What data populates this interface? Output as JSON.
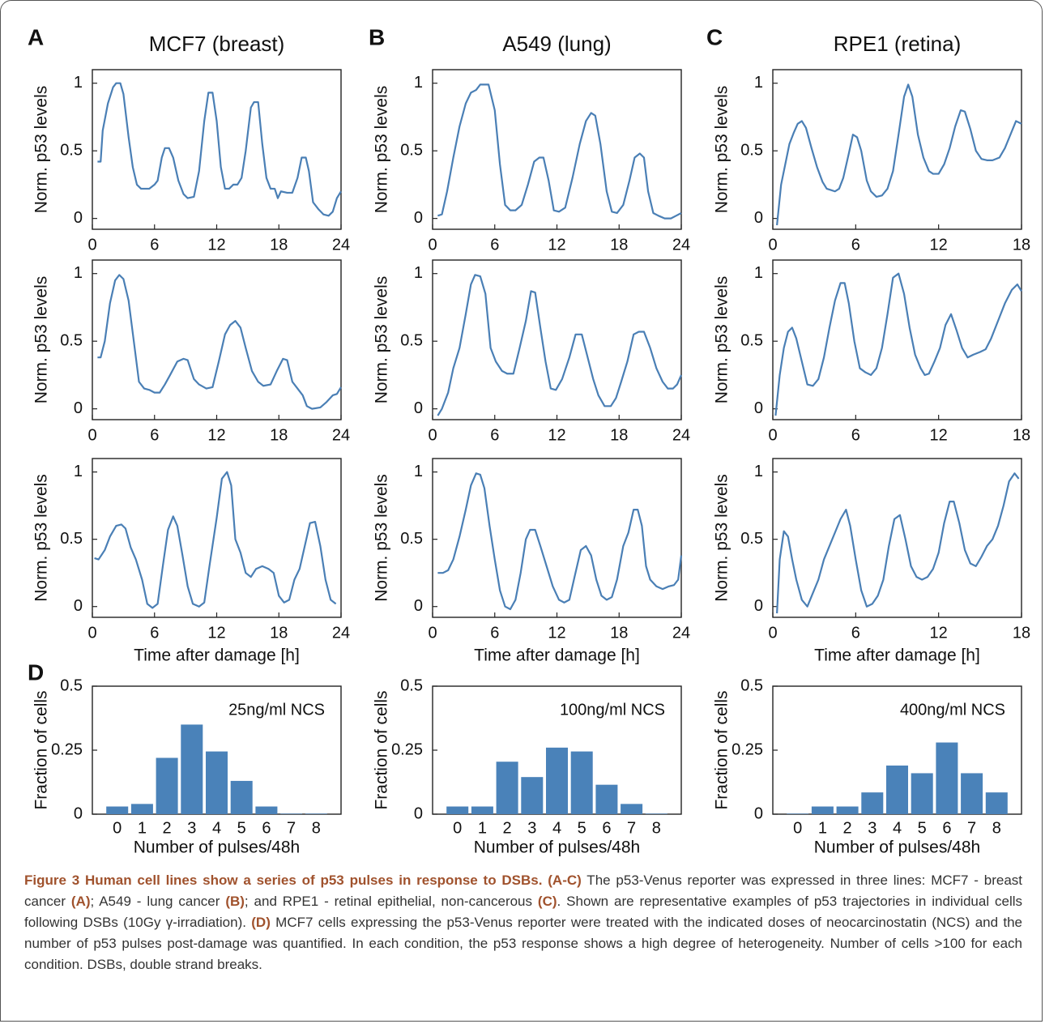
{
  "panel_labels": [
    "A",
    "B",
    "C",
    "D"
  ],
  "chart_data": [
    {
      "type": "line",
      "title": "MCF7 (breast)",
      "ylabel": "Norm. p53 levels",
      "color": "#4a7fb5",
      "xlim": [
        0,
        24
      ],
      "xticks": [
        0,
        6,
        12,
        18,
        24
      ],
      "ylim": [
        -0.08,
        1.1
      ],
      "yticks": [
        0,
        0.5,
        1
      ],
      "x": [
        0.5,
        0.8,
        1,
        1.5,
        2,
        2.3,
        2.7,
        3,
        3.5,
        3.9,
        4.3,
        4.7,
        5.5,
        6,
        6.3,
        6.7,
        7,
        7.4,
        7.8,
        8.3,
        8.8,
        9.2,
        9.8,
        10.3,
        10.8,
        11.2,
        11.6,
        12,
        12.4,
        12.8,
        13.2,
        13.6,
        14,
        14.4,
        14.8,
        15.3,
        15.6,
        16,
        16.4,
        16.8,
        17.2,
        17.6,
        17.9,
        18.2,
        18.8,
        19.3,
        19.8,
        20.2,
        20.6,
        20.9,
        21.3,
        21.8,
        22.3,
        22.8,
        23.2,
        23.6,
        24
      ],
      "values": [
        0.42,
        0.42,
        0.65,
        0.85,
        0.97,
        1.0,
        1.0,
        0.92,
        0.6,
        0.38,
        0.25,
        0.22,
        0.22,
        0.25,
        0.28,
        0.45,
        0.52,
        0.52,
        0.45,
        0.28,
        0.18,
        0.15,
        0.16,
        0.35,
        0.72,
        0.93,
        0.93,
        0.72,
        0.38,
        0.22,
        0.22,
        0.25,
        0.25,
        0.3,
        0.5,
        0.82,
        0.86,
        0.86,
        0.55,
        0.3,
        0.22,
        0.22,
        0.15,
        0.2,
        0.19,
        0.19,
        0.3,
        0.45,
        0.45,
        0.35,
        0.12,
        0.07,
        0.03,
        0.02,
        0.05,
        0.15,
        0.2
      ]
    },
    {
      "type": "line",
      "title": "A549 (lung)",
      "ylabel": "Norm. p53 levels",
      "color": "#4a7fb5",
      "xlim": [
        0,
        24
      ],
      "xticks": [
        0,
        6,
        12,
        18,
        24
      ],
      "ylim": [
        -0.08,
        1.1
      ],
      "yticks": [
        0,
        0.5,
        1
      ],
      "x": [
        0.5,
        0.9,
        1.4,
        2,
        2.6,
        3.2,
        3.7,
        4.2,
        4.6,
        5,
        5.4,
        6,
        6.5,
        7,
        7.5,
        8,
        8.6,
        9.2,
        9.8,
        10.3,
        10.7,
        11.2,
        11.7,
        12.2,
        12.8,
        13.5,
        14.2,
        14.8,
        15.3,
        15.7,
        16.2,
        16.8,
        17.3,
        17.8,
        18.4,
        19,
        19.5,
        20,
        20.4,
        20.8,
        21.3,
        21.8,
        22.4,
        23,
        23.5,
        24
      ],
      "values": [
        0.02,
        0.03,
        0.2,
        0.45,
        0.68,
        0.85,
        0.93,
        0.95,
        0.99,
        0.99,
        0.99,
        0.8,
        0.4,
        0.1,
        0.06,
        0.06,
        0.1,
        0.25,
        0.42,
        0.45,
        0.45,
        0.28,
        0.06,
        0.05,
        0.08,
        0.3,
        0.55,
        0.72,
        0.78,
        0.76,
        0.55,
        0.2,
        0.05,
        0.04,
        0.1,
        0.28,
        0.45,
        0.48,
        0.45,
        0.2,
        0.04,
        0.02,
        0.0,
        0.0,
        0.02,
        0.04
      ]
    },
    {
      "type": "line",
      "title": "RPE1 (retina)",
      "ylabel": "Norm. p53 levels",
      "color": "#4a7fb5",
      "xlim": [
        0,
        18
      ],
      "xticks": [
        0,
        6,
        12,
        18
      ],
      "ylim": [
        -0.08,
        1.1
      ],
      "yticks": [
        0,
        0.5,
        1
      ],
      "x": [
        0.3,
        0.6,
        0.9,
        1.2,
        1.5,
        1.8,
        2.1,
        2.4,
        2.8,
        3.2,
        3.6,
        3.9,
        4.2,
        4.5,
        4.8,
        5.1,
        5.5,
        5.8,
        6.1,
        6.4,
        6.8,
        7.1,
        7.5,
        7.9,
        8.3,
        8.7,
        9.1,
        9.5,
        9.8,
        10.1,
        10.5,
        10.9,
        11.3,
        11.6,
        12,
        12.4,
        12.8,
        13.2,
        13.6,
        13.9,
        14.3,
        14.7,
        15.1,
        15.5,
        15.9,
        16.4,
        16.8,
        17.2,
        17.6,
        18
      ],
      "values": [
        -0.05,
        0.25,
        0.4,
        0.55,
        0.63,
        0.7,
        0.72,
        0.67,
        0.52,
        0.38,
        0.27,
        0.22,
        0.21,
        0.2,
        0.22,
        0.3,
        0.48,
        0.62,
        0.6,
        0.5,
        0.28,
        0.2,
        0.16,
        0.17,
        0.22,
        0.35,
        0.62,
        0.9,
        0.99,
        0.9,
        0.62,
        0.45,
        0.35,
        0.33,
        0.33,
        0.4,
        0.52,
        0.68,
        0.8,
        0.79,
        0.66,
        0.5,
        0.44,
        0.43,
        0.43,
        0.45,
        0.52,
        0.62,
        0.72,
        0.7
      ]
    },
    {
      "type": "line",
      "ylabel": "Norm. p53 levels",
      "color": "#4a7fb5",
      "xlim": [
        0,
        24
      ],
      "xticks": [
        0,
        6,
        12,
        18,
        24
      ],
      "ylim": [
        -0.08,
        1.1
      ],
      "yticks": [
        0,
        0.5,
        1
      ],
      "x": [
        0.5,
        0.8,
        1.2,
        1.7,
        2.2,
        2.6,
        3,
        3.5,
        4,
        4.5,
        5,
        5.5,
        6,
        6.5,
        7,
        7.5,
        8.2,
        8.8,
        9.2,
        9.8,
        10.3,
        11,
        11.6,
        12.2,
        12.8,
        13.3,
        13.8,
        14.3,
        14.8,
        15.4,
        16,
        16.5,
        17.2,
        17.8,
        18.4,
        18.8,
        19.3,
        19.8,
        20.3,
        20.7,
        21.2,
        22,
        22.6,
        23.2,
        23.6,
        24
      ],
      "values": [
        0.38,
        0.38,
        0.5,
        0.78,
        0.95,
        0.99,
        0.96,
        0.8,
        0.5,
        0.2,
        0.15,
        0.14,
        0.12,
        0.12,
        0.18,
        0.25,
        0.35,
        0.37,
        0.36,
        0.22,
        0.18,
        0.15,
        0.16,
        0.35,
        0.55,
        0.62,
        0.65,
        0.6,
        0.45,
        0.28,
        0.2,
        0.17,
        0.18,
        0.28,
        0.37,
        0.36,
        0.2,
        0.15,
        0.1,
        0.02,
        0.0,
        0.01,
        0.05,
        0.1,
        0.11,
        0.16
      ]
    },
    {
      "type": "line",
      "ylabel": "Norm. p53 levels",
      "color": "#4a7fb5",
      "xlim": [
        0,
        24
      ],
      "xticks": [
        0,
        6,
        12,
        18,
        24
      ],
      "ylim": [
        -0.08,
        1.1
      ],
      "yticks": [
        0,
        0.5,
        1
      ],
      "x": [
        0.5,
        0.9,
        1.5,
        2,
        2.6,
        3.2,
        3.7,
        4.1,
        4.6,
        5.1,
        5.6,
        6.1,
        6.7,
        7.2,
        7.8,
        8.4,
        9,
        9.5,
        9.9,
        10.4,
        10.9,
        11.4,
        11.9,
        12.5,
        13.2,
        13.8,
        14.4,
        14.9,
        15.5,
        16,
        16.6,
        17.2,
        17.7,
        18.2,
        18.8,
        19.4,
        19.9,
        20.4,
        21,
        21.6,
        22.2,
        22.7,
        23.2,
        23.6,
        24
      ],
      "values": [
        -0.05,
        0,
        0.12,
        0.3,
        0.45,
        0.7,
        0.92,
        0.99,
        0.98,
        0.85,
        0.45,
        0.35,
        0.28,
        0.26,
        0.26,
        0.45,
        0.65,
        0.87,
        0.86,
        0.6,
        0.35,
        0.15,
        0.14,
        0.22,
        0.38,
        0.55,
        0.55,
        0.4,
        0.22,
        0.1,
        0.02,
        0.02,
        0.08,
        0.2,
        0.35,
        0.55,
        0.57,
        0.57,
        0.45,
        0.3,
        0.2,
        0.15,
        0.15,
        0.18,
        0.25
      ]
    },
    {
      "type": "line",
      "ylabel": "Norm. p53 levels",
      "color": "#4a7fb5",
      "xlim": [
        0,
        18
      ],
      "xticks": [
        0,
        6,
        12,
        18
      ],
      "ylim": [
        -0.08,
        1.1
      ],
      "yticks": [
        0,
        0.5,
        1
      ],
      "x": [
        0.2,
        0.5,
        0.8,
        1.1,
        1.4,
        1.7,
        2.1,
        2.5,
        2.9,
        3.3,
        3.7,
        4.1,
        4.5,
        4.9,
        5.2,
        5.5,
        5.9,
        6.3,
        6.7,
        7.1,
        7.5,
        7.9,
        8.3,
        8.7,
        9.1,
        9.5,
        9.9,
        10.3,
        10.7,
        11,
        11.3,
        11.7,
        12.1,
        12.5,
        12.9,
        13.3,
        13.7,
        14.1,
        14.5,
        15,
        15.4,
        15.8,
        16.3,
        16.8,
        17.3,
        17.7,
        18
      ],
      "values": [
        -0.05,
        0.25,
        0.45,
        0.57,
        0.6,
        0.52,
        0.35,
        0.18,
        0.17,
        0.22,
        0.38,
        0.6,
        0.8,
        0.93,
        0.93,
        0.78,
        0.5,
        0.3,
        0.27,
        0.25,
        0.3,
        0.45,
        0.7,
        0.97,
        1.0,
        0.85,
        0.6,
        0.4,
        0.3,
        0.25,
        0.26,
        0.35,
        0.45,
        0.62,
        0.7,
        0.58,
        0.45,
        0.38,
        0.4,
        0.42,
        0.44,
        0.52,
        0.65,
        0.78,
        0.88,
        0.92,
        0.87
      ]
    },
    {
      "type": "line",
      "ylabel": "Norm. p53 levels",
      "xlabel": "Time after damage [h]",
      "color": "#4a7fb5",
      "xlim": [
        0,
        24
      ],
      "xticks": [
        0,
        6,
        12,
        18,
        24
      ],
      "ylim": [
        -0.08,
        1.1
      ],
      "yticks": [
        0,
        0.5,
        1
      ],
      "x": [
        0.2,
        0.6,
        1.2,
        1.7,
        2.3,
        2.8,
        3.2,
        3.7,
        4.2,
        4.8,
        5.3,
        5.8,
        6.3,
        6.8,
        7.3,
        7.8,
        8.2,
        8.7,
        9.2,
        9.7,
        10.3,
        10.8,
        11.3,
        12,
        12.5,
        13,
        13.4,
        13.8,
        14.3,
        14.8,
        15.3,
        15.8,
        16.4,
        17,
        17.5,
        18,
        18.5,
        19,
        19.5,
        20,
        20.5,
        21,
        21.5,
        22,
        22.5,
        23,
        23.5
      ],
      "values": [
        0.36,
        0.35,
        0.42,
        0.52,
        0.6,
        0.61,
        0.58,
        0.44,
        0.35,
        0.2,
        0.02,
        -0.01,
        0.02,
        0.3,
        0.57,
        0.67,
        0.6,
        0.38,
        0.15,
        0.02,
        0.0,
        0.03,
        0.3,
        0.66,
        0.95,
        1.0,
        0.9,
        0.5,
        0.4,
        0.25,
        0.22,
        0.28,
        0.3,
        0.28,
        0.25,
        0.08,
        0.03,
        0.05,
        0.2,
        0.28,
        0.45,
        0.62,
        0.63,
        0.45,
        0.2,
        0.05,
        0.02
      ]
    },
    {
      "type": "line",
      "ylabel": "Norm. p53 levels",
      "xlabel": "Time after damage [h]",
      "color": "#4a7fb5",
      "xlim": [
        0,
        24
      ],
      "xticks": [
        0,
        6,
        12,
        18,
        24
      ],
      "ylim": [
        -0.08,
        1.1
      ],
      "yticks": [
        0,
        0.5,
        1
      ],
      "x": [
        0.5,
        1,
        1.5,
        2,
        2.6,
        3.2,
        3.7,
        4.2,
        4.6,
        5,
        5.5,
        6,
        6.5,
        7,
        7.5,
        8,
        8.5,
        9,
        9.4,
        9.9,
        10.4,
        11,
        11.6,
        12.2,
        12.7,
        13.2,
        13.7,
        14.3,
        14.8,
        15.3,
        15.8,
        16.3,
        16.8,
        17.3,
        17.8,
        18.4,
        18.9,
        19.4,
        19.8,
        20.2,
        20.6,
        21,
        21.6,
        22.2,
        22.8,
        23.3,
        23.7,
        24
      ],
      "values": [
        0.25,
        0.25,
        0.27,
        0.35,
        0.52,
        0.72,
        0.9,
        0.99,
        0.98,
        0.88,
        0.6,
        0.35,
        0.12,
        0.0,
        -0.02,
        0.05,
        0.25,
        0.5,
        0.57,
        0.57,
        0.45,
        0.3,
        0.15,
        0.05,
        0.03,
        0.05,
        0.22,
        0.42,
        0.45,
        0.38,
        0.2,
        0.08,
        0.05,
        0.07,
        0.2,
        0.45,
        0.55,
        0.72,
        0.72,
        0.6,
        0.3,
        0.2,
        0.15,
        0.13,
        0.15,
        0.16,
        0.2,
        0.38
      ]
    },
    {
      "type": "line",
      "ylabel": "Norm. p53 levels",
      "xlabel": "Time after damage [h]",
      "color": "#4a7fb5",
      "xlim": [
        0,
        18
      ],
      "xticks": [
        0,
        6,
        12,
        18
      ],
      "ylim": [
        -0.08,
        1.1
      ],
      "yticks": [
        0,
        0.5,
        1
      ],
      "x": [
        0.3,
        0.5,
        0.8,
        1.1,
        1.4,
        1.7,
        2.1,
        2.5,
        2.9,
        3.3,
        3.7,
        4.1,
        4.5,
        4.9,
        5.3,
        5.6,
        6,
        6.4,
        6.8,
        7.2,
        7.6,
        8,
        8.4,
        8.8,
        9.2,
        9.6,
        10,
        10.4,
        10.8,
        11.2,
        11.6,
        12,
        12.4,
        12.8,
        13.1,
        13.5,
        13.9,
        14.3,
        14.7,
        15.1,
        15.5,
        15.9,
        16.3,
        16.7,
        17.1,
        17.5,
        17.8
      ],
      "values": [
        -0.05,
        0.35,
        0.56,
        0.52,
        0.35,
        0.2,
        0.05,
        0.0,
        0.1,
        0.2,
        0.35,
        0.45,
        0.55,
        0.65,
        0.72,
        0.6,
        0.35,
        0.12,
        0.0,
        0.02,
        0.08,
        0.2,
        0.45,
        0.65,
        0.68,
        0.5,
        0.3,
        0.22,
        0.2,
        0.22,
        0.28,
        0.4,
        0.62,
        0.78,
        0.78,
        0.62,
        0.42,
        0.32,
        0.3,
        0.37,
        0.45,
        0.5,
        0.6,
        0.75,
        0.93,
        0.99,
        0.95
      ]
    },
    {
      "type": "bar",
      "annotation": "25ng/ml NCS",
      "ylabel": "Fraction of cells",
      "xlabel": "Number of pulses/48h",
      "color": "#4a82b9",
      "ylim": [
        0,
        0.5
      ],
      "yticks": [
        0,
        0.25,
        0.5
      ],
      "categories": [
        "0",
        "1",
        "2",
        "3",
        "4",
        "5",
        "6",
        "7",
        "8"
      ],
      "values": [
        0.03,
        0.04,
        0.22,
        0.35,
        0.245,
        0.13,
        0.03,
        0.002,
        0.002
      ]
    },
    {
      "type": "bar",
      "annotation": "100ng/ml NCS",
      "ylabel": "Fraction of cells",
      "xlabel": "Number of pulses/48h",
      "color": "#4a82b9",
      "ylim": [
        0,
        0.5
      ],
      "yticks": [
        0,
        0.25,
        0.5
      ],
      "categories": [
        "0",
        "1",
        "2",
        "3",
        "4",
        "5",
        "6",
        "7",
        "8"
      ],
      "values": [
        0.03,
        0.03,
        0.205,
        0.145,
        0.26,
        0.245,
        0.115,
        0.04,
        0.002
      ]
    },
    {
      "type": "bar",
      "annotation": "400ng/ml NCS",
      "ylabel": "Fraction of cells",
      "xlabel": "Number of pulses/48h",
      "color": "#4a82b9",
      "ylim": [
        0,
        0.5
      ],
      "yticks": [
        0,
        0.25,
        0.5
      ],
      "categories": [
        "0",
        "1",
        "2",
        "3",
        "4",
        "5",
        "6",
        "7",
        "8"
      ],
      "values": [
        0.002,
        0.03,
        0.03,
        0.085,
        0.19,
        0.16,
        0.28,
        0.16,
        0.085
      ]
    }
  ],
  "caption": [
    {
      "text": "Figure 3 Human cell lines show a series of p53 pulses in response to DSBs. (A-C)",
      "bold": true
    },
    {
      "text": " The p53-Venus reporter was expressed in three lines: MCF7 - breast cancer ",
      "bold": false
    },
    {
      "text": "(A)",
      "bold": true
    },
    {
      "text": "; A549 - lung cancer ",
      "bold": false
    },
    {
      "text": "(B)",
      "bold": true
    },
    {
      "text": "; and RPE1 - retinal epithelial, non-cancerous ",
      "bold": false
    },
    {
      "text": "(C)",
      "bold": true
    },
    {
      "text": ". Shown are representative examples of p53 trajectories in individual cells following DSBs (10Gy γ-irradiation). ",
      "bold": false
    },
    {
      "text": "(D)",
      "bold": true
    },
    {
      "text": " MCF7 cells expressing the p53-Venus reporter were treated with the indicated doses of neocarcinostatin (NCS) and the number of p53 pulses post-damage was quantified. In each condition, the p53 response shows a high degree of heterogeneity. Number of cells >100 for each condition. DSBs, double strand breaks.",
      "bold": false
    }
  ]
}
